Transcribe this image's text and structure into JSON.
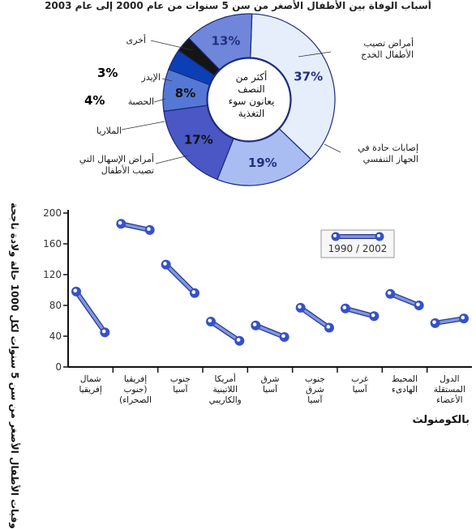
{
  "chart_data": [
    {
      "type": "pie",
      "title": "أسباب الوفاة بين الأطفال الأصغر من سن 5 سنوات من عام 2000 إلى عام 2003",
      "center_text": [
        "أكثر من",
        "النصف",
        "يعانون سوء",
        "التغذية"
      ],
      "slices": [
        {
          "label": "أمراض تصيب الأطفال الخدج",
          "value": 37,
          "display": "37%",
          "color": "#e6eefc"
        },
        {
          "label": "إصابات حادة في الجهاز التنفسي",
          "value": 19,
          "display": "19%",
          "color": "#a9bdf3"
        },
        {
          "label": "أمراض الإسهال التي تصيب الأطفال",
          "value": 17,
          "display": "17%",
          "color": "#4a57c4"
        },
        {
          "label": "الملاريا",
          "value": 8,
          "display": "8%",
          "color": "#5578d6"
        },
        {
          "label": "الحصبة",
          "value": 4,
          "display": "4%",
          "color": "#0c3fb5"
        },
        {
          "label": "الإيدز",
          "value": 3,
          "display": "3%",
          "color": "#151515"
        },
        {
          "label": "أخرى",
          "value": 13,
          "display": "13%",
          "color": "#6f86db"
        }
      ]
    },
    {
      "type": "line",
      "ylabel": "وفيات الأطفال الأصغر من سن 5 سنوات لكل 1000 حالة ولادة ناجحة",
      "ylim": [
        0,
        200
      ],
      "yticks": [
        0,
        40,
        80,
        120,
        160,
        200
      ],
      "grid": false,
      "legend_position": "top-right",
      "legend_label": "1990 / 2002",
      "x_labels": [
        "1990",
        "2002"
      ],
      "categories": [
        {
          "label": [
            "شمال",
            "إفريقيا"
          ],
          "v1990": 98,
          "v2002": 45
        },
        {
          "label": [
            "إفريقيا",
            "(جنوب",
            "الصحراء)"
          ],
          "v1990": 186,
          "v2002": 178
        },
        {
          "label": [
            "جنوب",
            "آسيا"
          ],
          "v1990": 133,
          "v2002": 96
        },
        {
          "label": [
            "أمريكا",
            "اللاتينية",
            "والكاريبي"
          ],
          "v1990": 59,
          "v2002": 34
        },
        {
          "label": [
            "شرق",
            "آسيا"
          ],
          "v1990": 54,
          "v2002": 39
        },
        {
          "label": [
            "جنوب",
            "شرق",
            "آسيا"
          ],
          "v1990": 77,
          "v2002": 51
        },
        {
          "label": [
            "غرب",
            "آسيا"
          ],
          "v1990": 76,
          "v2002": 66
        },
        {
          "label": [
            "المحيط",
            "الهادىء"
          ],
          "v1990": 95,
          "v2002": 80
        },
        {
          "label": [
            "الدول",
            "المستقلة",
            "الأعضاء"
          ],
          "v1990": 57,
          "v2002": 63
        }
      ],
      "colors": {
        "line": "#7f96e0",
        "marker_outer": "#3651c8",
        "marker_inner": "#ffffff",
        "axis": "#111111"
      }
    }
  ],
  "footer": {
    "brand": "بالكومنولث"
  }
}
